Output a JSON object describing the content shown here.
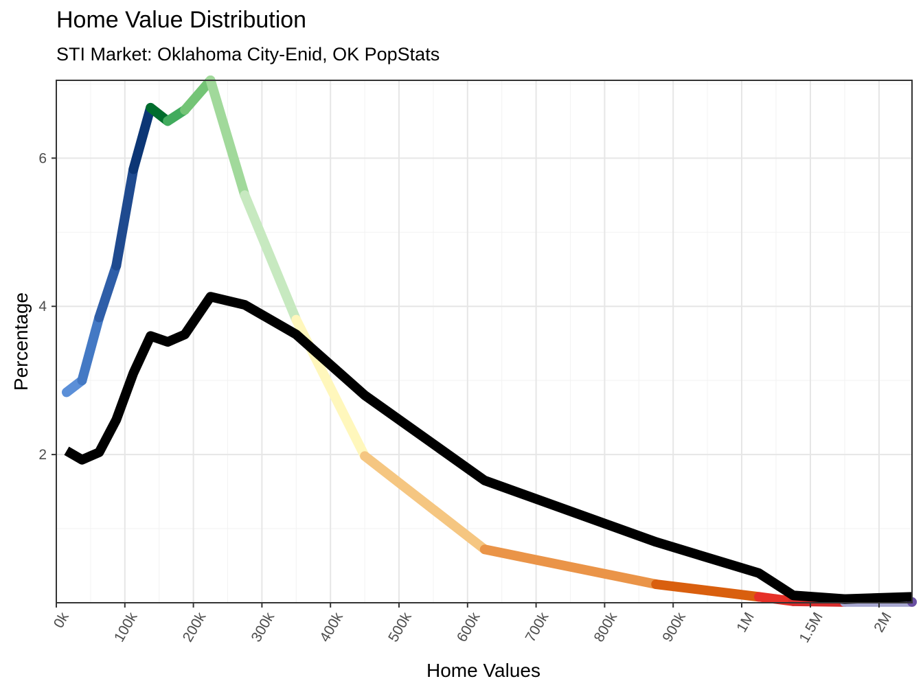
{
  "chart_data": {
    "type": "line",
    "title": "Home Value Distribution",
    "subtitle": "STI Market: Oklahoma City-Enid, OK PopStats",
    "xlabel": "Home Values",
    "ylabel": "Percentage",
    "x_tick_labels": [
      "0k",
      "100k",
      "200k",
      "300k",
      "400k",
      "500k",
      "600k",
      "700k",
      "800k",
      "900k",
      "1M",
      "1.5M",
      "2M"
    ],
    "y_ticks": [
      2,
      4,
      6
    ],
    "ylim": [
      0,
      7.05
    ],
    "grid": true,
    "x": [
      15,
      37.5,
      62.5,
      87.5,
      112.5,
      137.5,
      162.5,
      187.5,
      225,
      275,
      350,
      450,
      625,
      875,
      1125,
      1375,
      1750,
      2250
    ],
    "series": [
      {
        "values": [
          2.84,
          3.0,
          3.85,
          4.55,
          5.85,
          6.68,
          6.5,
          6.65,
          7.05,
          5.5,
          3.82,
          1.98,
          0.72,
          0.25,
          0.08,
          0.02,
          0.01,
          0.01
        ],
        "segment_colors": [
          "#5b8fd8",
          "#4479c4",
          "#2f5ea8",
          "#1f4a8f",
          "#0c3675",
          "#006d2c",
          "#41ab5d",
          "#74c476",
          "#a1d99b",
          "#c7e9c0",
          "#fff7bc",
          "#f5c681",
          "#ea9448",
          "#d95f0e",
          "#e63028",
          "#d62d2d",
          "#a6a6cf",
          "#6a51a3"
        ]
      },
      {
        "color": "#000000",
        "values": [
          2.05,
          1.93,
          2.03,
          2.47,
          3.1,
          3.6,
          3.52,
          3.62,
          4.13,
          4.02,
          3.62,
          2.8,
          1.65,
          0.82,
          0.4,
          0.1,
          0.05,
          0.08
        ]
      }
    ]
  }
}
